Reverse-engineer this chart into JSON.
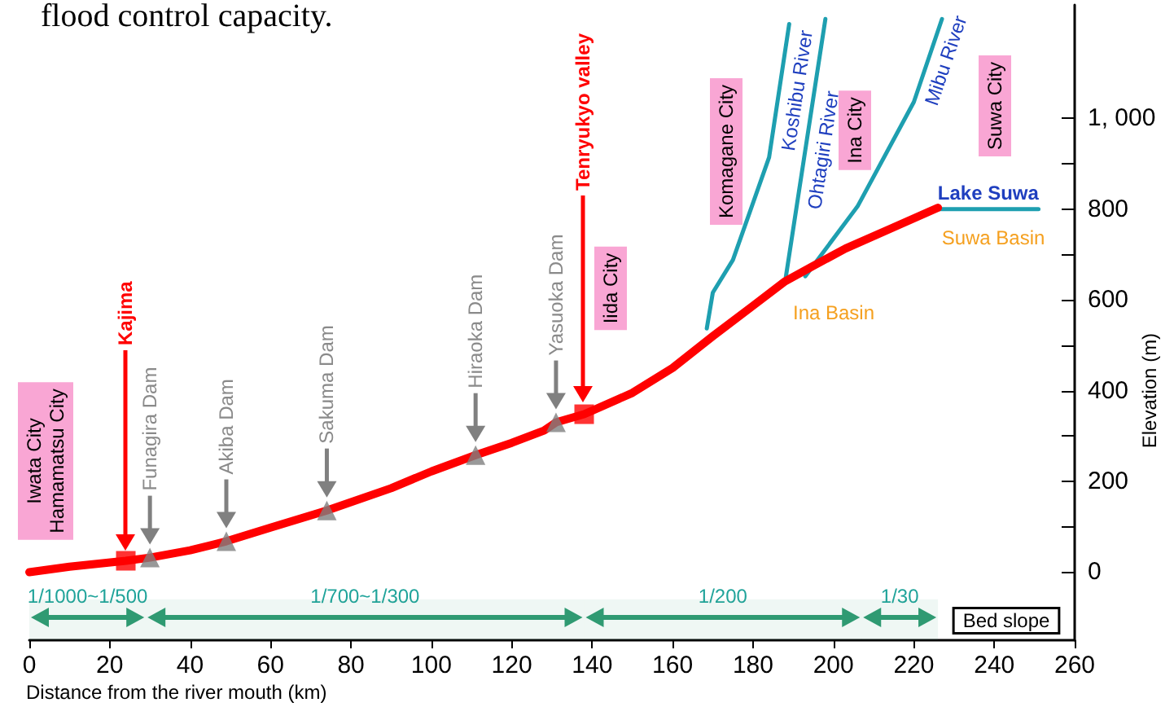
{
  "chart_data": {
    "type": "line",
    "xlabel": "Distance from the river mouth (km)",
    "ylabel": "Elevation (m)",
    "xlim": [
      0,
      260
    ],
    "xticks": [
      0,
      20,
      40,
      60,
      80,
      100,
      120,
      140,
      160,
      180,
      200,
      220,
      240,
      260
    ],
    "ylim": [
      -150,
      1250
    ],
    "yticks": [
      0,
      {
        "value": 100,
        "label": null
      },
      200,
      {
        "value": 300,
        "label": null
      },
      400,
      {
        "value": 500,
        "label": null
      },
      600,
      {
        "value": 700,
        "label": null
      },
      800,
      {
        "value": 900,
        "label": null
      },
      {
        "value": 1000,
        "label": "1, 000"
      }
    ],
    "grid": false,
    "legend": false,
    "series": [
      {
        "color": "#ff0000",
        "marker": "none",
        "x": [
          0,
          10,
          24,
          30,
          40,
          49,
          60,
          74,
          90,
          100,
          111,
          120,
          128,
          131,
          138,
          150,
          160,
          170,
          180,
          188,
          195,
          203,
          215,
          226
        ],
        "values": [
          0,
          12,
          25,
          32,
          48,
          68,
          98,
          136,
          185,
          222,
          258,
          285,
          312,
          330,
          348,
          395,
          450,
          520,
          587,
          641,
          675,
          713,
          760,
          803
        ]
      },
      {
        "type": "line",
        "name": "Koshibu River",
        "color": "#1e9fb0",
        "marker": "none",
        "x": [
          168.5,
          170,
          175,
          184,
          189
        ],
        "values": [
          537,
          616,
          688,
          914,
          1208
        ]
      },
      {
        "type": "line",
        "name": "Ohtagiri River",
        "color": "#1e9fb0",
        "marker": "none",
        "x": [
          188,
          198
        ],
        "values": [
          641,
          1219
        ]
      },
      {
        "type": "line",
        "name": "Mibu River",
        "color": "#1e9fb0",
        "marker": "none",
        "x": [
          193,
          206,
          220,
          227
        ],
        "values": [
          652,
          806,
          1036,
          1219
        ]
      },
      {
        "type": "line",
        "name": "Lake Suwa",
        "color": "#1e9fb0",
        "marker": "none",
        "x": [
          226,
          251
        ],
        "values": [
          800,
          800
        ]
      },
      {
        "type": "scatter",
        "color": "#808080",
        "marker": "triangle",
        "x": [
          30,
          49,
          74,
          111,
          131
        ],
        "values": [
          32,
          68,
          136,
          258,
          330
        ],
        "value_labels": [
          "Funagira Dam",
          "Akiba Dam",
          "Sakuma Dam",
          "Hiraoka Dam",
          "Yasuoka Dam"
        ]
      },
      {
        "type": "scatter",
        "color": "#ff0000",
        "marker": "square",
        "x": [
          24,
          138
        ],
        "values": [
          25,
          348
        ]
      }
    ],
    "bands": [
      {
        "axis": "x",
        "from": 0,
        "to": 29,
        "label": "1/1000~1/500",
        "color": "#2f9a72"
      },
      {
        "axis": "x",
        "from": 29,
        "to": 138,
        "label": "1/700~1/300",
        "color": "#2f9a72"
      },
      {
        "axis": "x",
        "from": 138,
        "to": 207,
        "label": "1/200",
        "color": "#2f9a72"
      },
      {
        "axis": "x",
        "from": 207,
        "to": 226,
        "label": "1/30",
        "color": "#2f9a72"
      }
    ],
    "annotations": [
      "flood control capacity.",
      "Iwata City\nHamamatsu City",
      "Iida City",
      "Komagane City",
      "Ina City",
      "Suwa City",
      "Ina Basin",
      "Suwa Basin",
      "Bed slope",
      "Kajima",
      "Tenryukyo valley"
    ]
  }
}
